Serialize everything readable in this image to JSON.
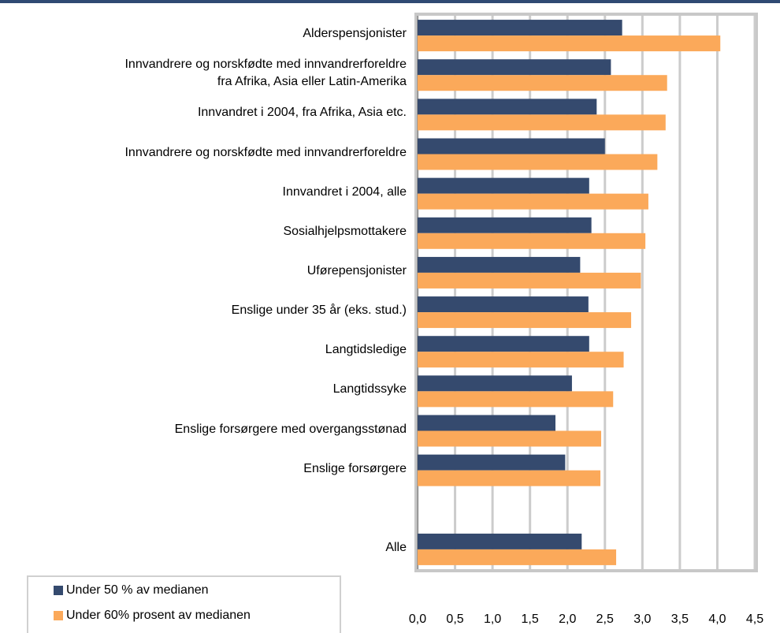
{
  "chart_data": {
    "type": "barh",
    "categories": [
      "Alderspensjonister",
      "Innvandrere og norskfødte med innvandrerforeldre\nfra Afrika, Asia eller Latin-Amerika",
      "Innvandret i 2004, fra Afrika, Asia etc.",
      "Innvandrere og norskfødte med innvandrerforeldre",
      "Innvandret i 2004, alle",
      "Sosialhjelpsmottakere",
      "Uførepensjonister",
      "Enslige under 35 år (eks. stud.)",
      "Langtidsledige",
      "Langtidssyke",
      "Enslige forsørgere med overgangsstønad",
      "Enslige forsørgere",
      null,
      "Alle"
    ],
    "series": [
      {
        "name": "Under 50 % av medianen",
        "color": "#354a6e",
        "values": [
          2.73,
          2.58,
          2.39,
          2.5,
          2.29,
          2.32,
          2.17,
          2.28,
          2.29,
          2.06,
          1.84,
          1.97,
          null,
          2.19
        ]
      },
      {
        "name": "Under 60% prosent av medianen",
        "color": "#fba95a",
        "values": [
          4.04,
          3.33,
          3.31,
          3.2,
          3.08,
          3.04,
          2.98,
          2.85,
          2.75,
          2.61,
          2.45,
          2.44,
          null,
          2.65
        ]
      }
    ],
    "xlim": [
      0,
      4.5
    ],
    "xticks": [
      {
        "value": 0,
        "label": "0,0"
      },
      {
        "value": 0.5,
        "label": "0,5"
      },
      {
        "value": 1,
        "label": "1,0"
      },
      {
        "value": 1.5,
        "label": "1,5"
      },
      {
        "value": 2,
        "label": "2,0"
      },
      {
        "value": 2.5,
        "label": "2,5"
      },
      {
        "value": 3,
        "label": "3,0"
      },
      {
        "value": 3.5,
        "label": "3,5"
      },
      {
        "value": 4,
        "label": "4,0"
      },
      {
        "value": 4.5,
        "label": "4,5"
      }
    ],
    "grid": true
  }
}
